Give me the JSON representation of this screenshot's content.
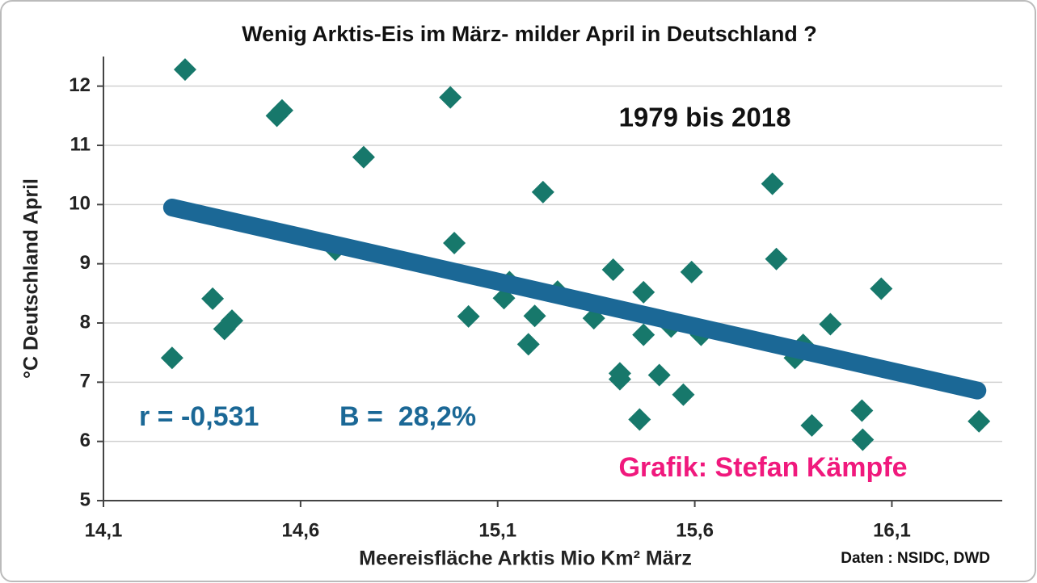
{
  "chart_data": {
    "type": "scatter",
    "title": "Wenig Arktis-Eis im März- milder April in Deutschland ?",
    "x_label": "Meereisfläche Arktis Mio Km² März",
    "y_label": "°C Deutschland April",
    "annotations": [
      "1979 bis 2018",
      "r = -0,531",
      "B =  28,2%",
      "Grafik: Stefan Kämpfe",
      "Daten : NSIDC, DWD"
    ],
    "color": "#17786b",
    "x": [
      14.307,
      14.54,
      14.553,
      14.76,
      14.98,
      14.274,
      14.377,
      14.407,
      14.426,
      14.688,
      14.99,
      15.026,
      15.116,
      15.13,
      15.178,
      15.194,
      15.215,
      15.252,
      15.344,
      15.393,
      15.41,
      15.41,
      15.46,
      15.47,
      15.47,
      15.51,
      15.54,
      15.571,
      15.592,
      15.616,
      15.797,
      15.807,
      15.854,
      15.875,
      15.897,
      15.944,
      16.024,
      16.026,
      16.073,
      16.321
    ],
    "values": [
      12.28,
      11.5,
      11.59,
      10.8,
      11.81,
      7.41,
      8.41,
      7.9,
      8.04,
      9.24,
      9.35,
      8.11,
      8.42,
      8.69,
      7.64,
      8.12,
      10.21,
      8.53,
      8.08,
      8.9,
      7.15,
      7.05,
      6.37,
      8.52,
      7.8,
      7.12,
      7.94,
      6.79,
      8.86,
      7.8,
      10.35,
      9.08,
      7.41,
      7.63,
      6.27,
      7.98,
      6.52,
      6.03,
      8.58,
      6.34
    ],
    "trend": {
      "x": [
        14.274,
        16.317
      ],
      "values": [
        9.95,
        6.86
      ],
      "color": "#1b6896"
    },
    "xlim": [
      14.1,
      16.38
    ],
    "xticks": [
      {
        "value": 14.1,
        "label": "14,1"
      },
      {
        "value": 14.6,
        "label": "14,6"
      },
      {
        "value": 15.1,
        "label": "15,1"
      },
      {
        "value": 15.6,
        "label": "15,6"
      },
      {
        "value": 16.1,
        "label": "16,1"
      }
    ],
    "ylim": [
      5,
      12.5
    ],
    "yticks": [
      5,
      6,
      7,
      8,
      9,
      10,
      11,
      12
    ],
    "grid": true
  }
}
